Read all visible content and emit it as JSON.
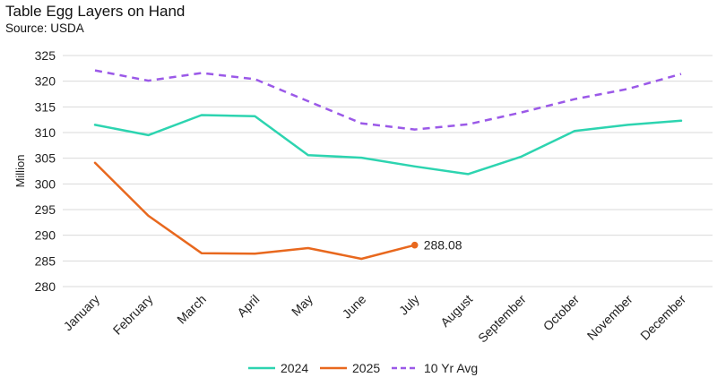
{
  "header": {
    "title": "Table Egg Layers on Hand",
    "subtitle": "Source: USDA"
  },
  "chart_data": {
    "type": "line",
    "title": "Table Egg Layers on Hand",
    "subtitle": "Source: USDA",
    "xlabel": "",
    "ylabel": "Million",
    "ylim": [
      280,
      325
    ],
    "yticks": [
      280,
      285,
      290,
      295,
      300,
      305,
      310,
      315,
      320,
      325
    ],
    "grid": "horizontal",
    "legend_position": "bottom",
    "categories": [
      "January",
      "February",
      "March",
      "April",
      "May",
      "June",
      "July",
      "August",
      "September",
      "October",
      "November",
      "December"
    ],
    "series": [
      {
        "name": "2024",
        "color": "#2dd4b0",
        "style": "solid",
        "values": [
          311.5,
          309.5,
          313.4,
          313.2,
          305.6,
          305.1,
          303.4,
          301.9,
          305.3,
          310.3,
          311.5,
          312.3
        ]
      },
      {
        "name": "2025",
        "color": "#e8681e",
        "style": "solid",
        "values": [
          304.1,
          293.8,
          286.5,
          286.4,
          287.5,
          285.4,
          288.08,
          null,
          null,
          null,
          null,
          null
        ]
      },
      {
        "name": "10 Yr Avg",
        "color": "#9b59e8",
        "style": "dashed",
        "values": [
          322.1,
          320.1,
          321.6,
          320.4,
          316.1,
          311.8,
          310.6,
          311.6,
          313.9,
          316.5,
          318.5,
          321.4
        ]
      }
    ],
    "annotations": [
      {
        "series": "2025",
        "category": "July",
        "text": "288.08"
      }
    ]
  }
}
